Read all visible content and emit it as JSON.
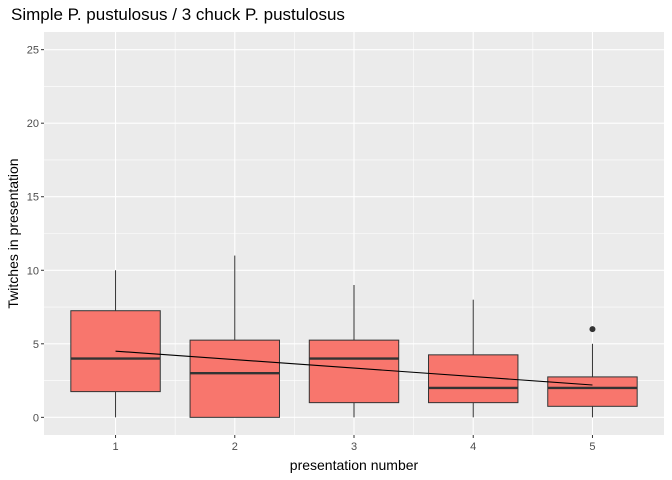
{
  "chart_data": {
    "type": "boxplot",
    "title": "Simple P. pustulosus / 3 chuck P. pustulosus",
    "xlabel": "presentation number",
    "ylabel": "Twitches in presentation",
    "categories": [
      "1",
      "2",
      "3",
      "4",
      "5"
    ],
    "ylim": [
      -1.2,
      26.2
    ],
    "yticks": [
      0,
      5,
      10,
      15,
      20,
      25
    ],
    "grid": true,
    "boxes": [
      {
        "category": "1",
        "whisker_low": 0,
        "q1": 1.75,
        "median": 4,
        "q3": 7.25,
        "whisker_high": 10,
        "outliers": []
      },
      {
        "category": "2",
        "whisker_low": 0,
        "q1": 0,
        "median": 3,
        "q3": 5.25,
        "whisker_high": 11,
        "outliers": []
      },
      {
        "category": "3",
        "whisker_low": 0,
        "q1": 1,
        "median": 4,
        "q3": 5.25,
        "whisker_high": 9,
        "outliers": []
      },
      {
        "category": "4",
        "whisker_low": 0,
        "q1": 1,
        "median": 2,
        "q3": 4.25,
        "whisker_high": 8,
        "outliers": []
      },
      {
        "category": "5",
        "whisker_low": 0,
        "q1": 0.75,
        "median": 2,
        "q3": 2.75,
        "whisker_high": 5,
        "outliers": [
          6
        ]
      }
    ],
    "trend_line": {
      "x": [
        "1",
        "5"
      ],
      "y": [
        4.5,
        2.2
      ]
    },
    "colors": {
      "box_fill": "#f8766d",
      "box_stroke": "#333333",
      "panel": "#ebebeb",
      "grid": "#ffffff",
      "trend": "#000000"
    }
  }
}
